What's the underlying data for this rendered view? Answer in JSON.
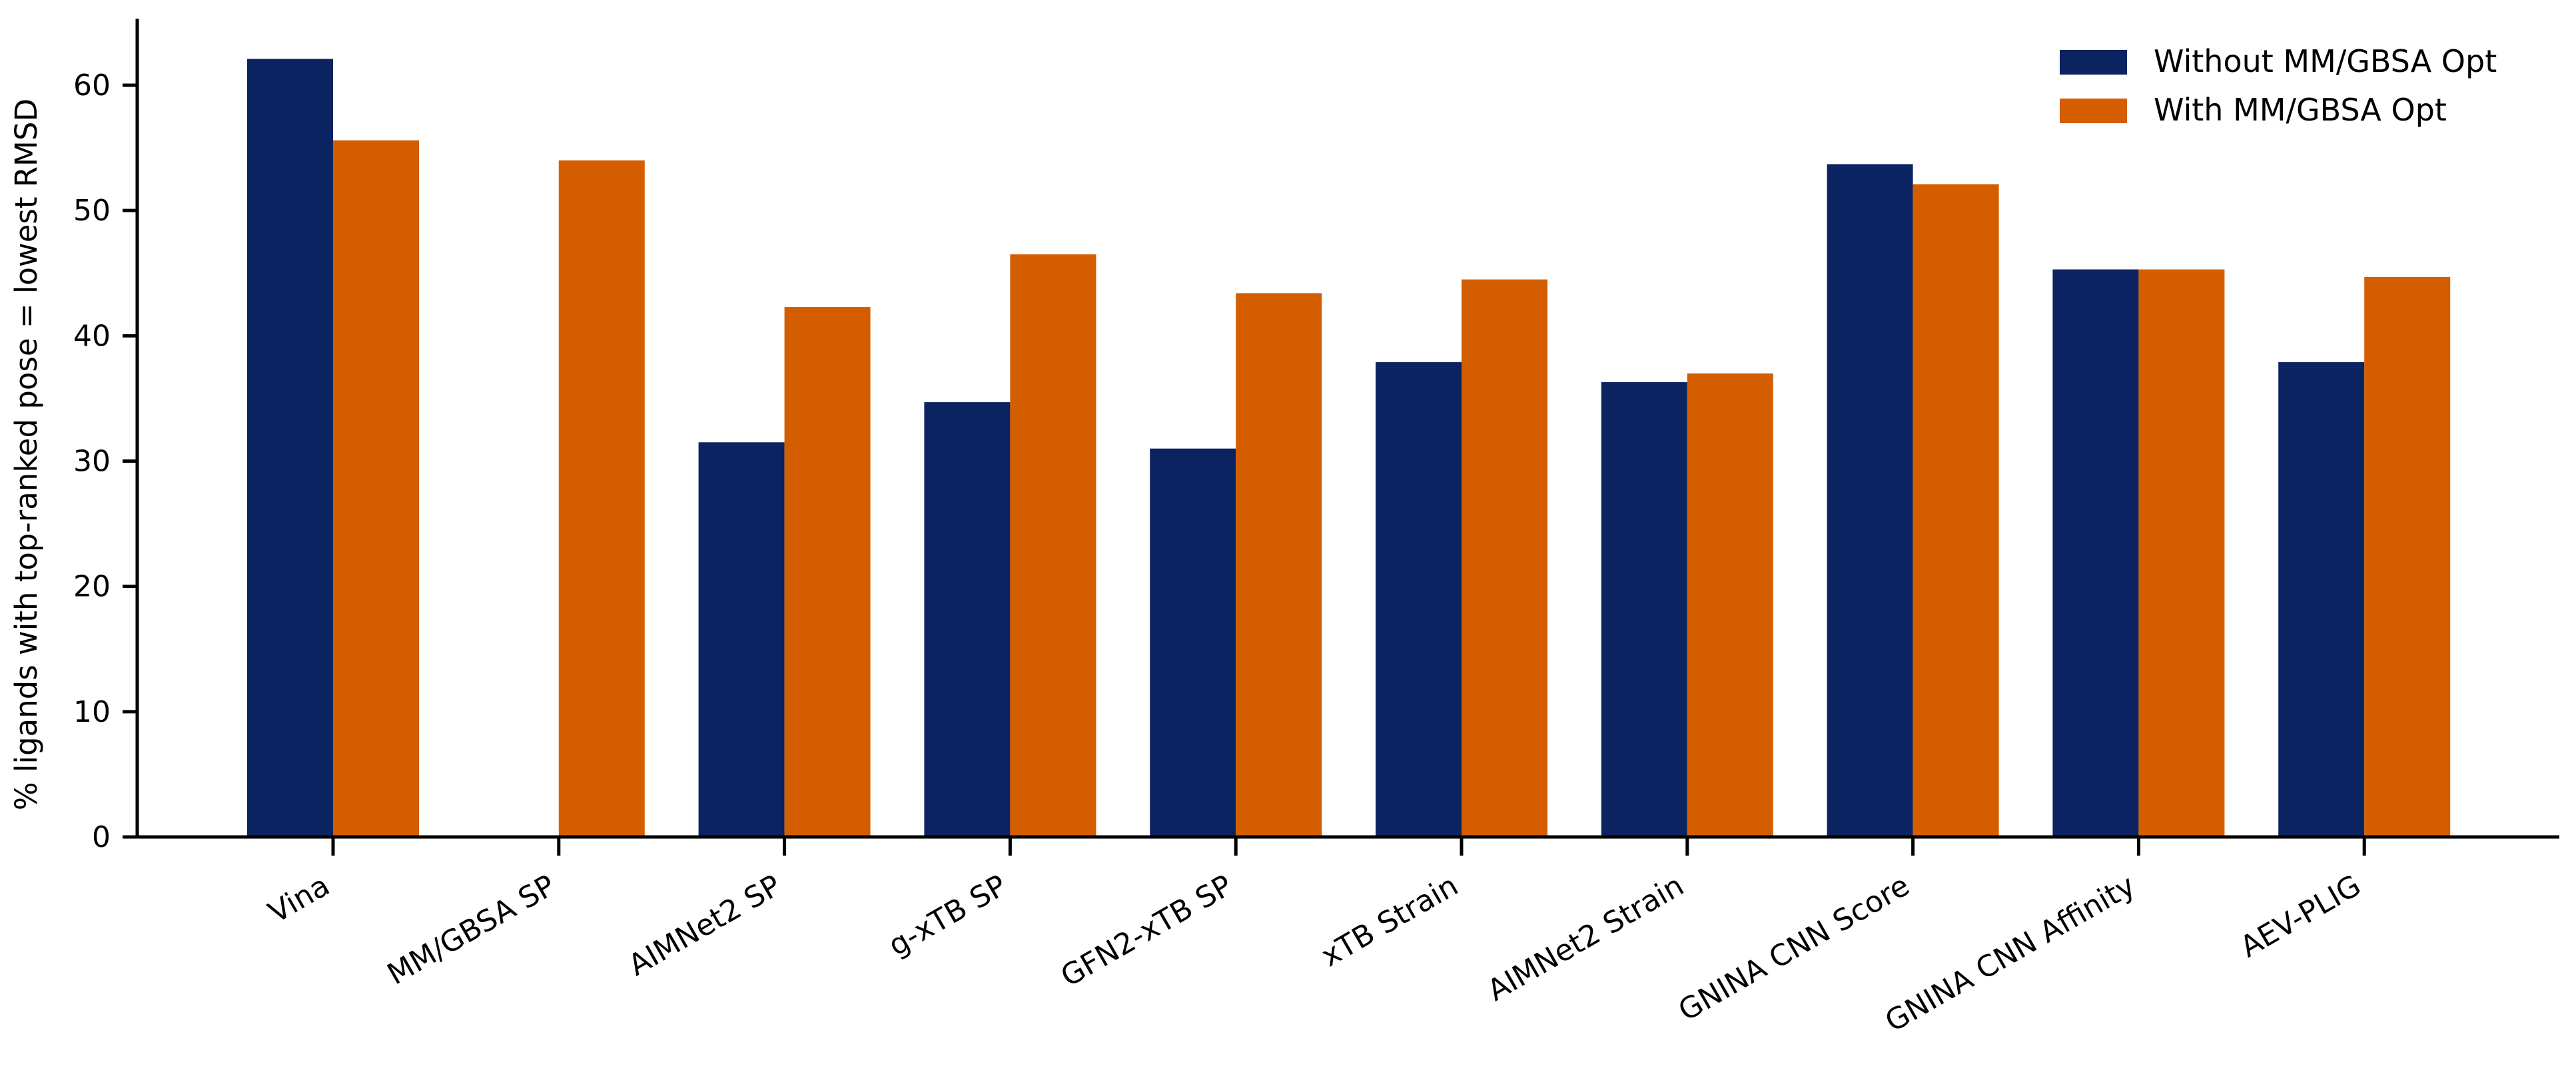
{
  "chart_data": {
    "type": "bar",
    "title": "",
    "xlabel": "",
    "ylabel": "% ligands with top-ranked pose = lowest RMSD",
    "ylim": [
      0,
      65
    ],
    "yticks": [
      0,
      10,
      20,
      30,
      40,
      50,
      60
    ],
    "grid": false,
    "legend_position": "top-right",
    "categories": [
      "Vina",
      "MM/GBSA SP",
      "AIMNet2 SP",
      "g-xTB SP",
      "GFN2-xTB SP",
      "xTB Strain",
      "AIMNet2 Strain",
      "GNINA CNN Score",
      "GNINA CNN Affinity",
      "AEV-PLIG"
    ],
    "series": [
      {
        "name": "Without MM/GBSA Opt",
        "color": "#0b2361",
        "values": [
          62.1,
          null,
          31.5,
          34.7,
          31.0,
          37.9,
          36.3,
          53.7,
          45.3,
          37.9
        ]
      },
      {
        "name": "With MM/GBSA Opt",
        "color": "#d45d00",
        "values": [
          55.6,
          54.0,
          42.3,
          46.5,
          43.4,
          44.5,
          37.0,
          52.1,
          45.3,
          44.7
        ]
      }
    ]
  }
}
